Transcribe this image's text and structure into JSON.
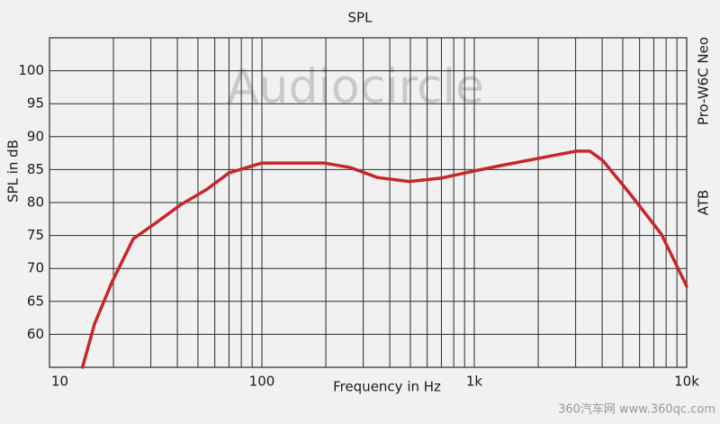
{
  "chart_data": {
    "type": "line",
    "title": "SPL",
    "x_label": "Frequency in Hz",
    "y_label": "SPL in dB",
    "annotations": [
      "Pro-W6C Neo",
      "ATB"
    ],
    "watermarks": [
      "Audiocircle",
      "360汽车网 www.360qc.com"
    ],
    "xscale": "log",
    "grid": true,
    "xlim": [
      10,
      10000
    ],
    "xticks": [
      10,
      100,
      {
        "value": 1000,
        "label": "1k"
      },
      {
        "value": 10000,
        "label": "10k"
      }
    ],
    "ylim": [
      55,
      105
    ],
    "yticks": [
      60,
      65,
      70,
      75,
      80,
      85,
      90,
      95,
      100
    ],
    "x": [
      14.3,
      16.3,
      19.8,
      24.8,
      30.7,
      41.2,
      55,
      70,
      100,
      196,
      262,
      350,
      494,
      696,
      1000,
      1380,
      2000,
      3013,
      3500,
      4020,
      5390,
      7600,
      10000
    ],
    "series": [
      {
        "name": "SPL",
        "color": "#c8262a",
        "values": [
          55,
          61.6,
          68.1,
          74.5,
          76.6,
          79.6,
          82,
          84.5,
          86,
          86,
          85.3,
          83.8,
          83.2,
          83.7,
          84.8,
          85.7,
          86.7,
          87.8,
          87.8,
          86.4,
          81.4,
          75.2,
          67.3
        ]
      }
    ]
  }
}
